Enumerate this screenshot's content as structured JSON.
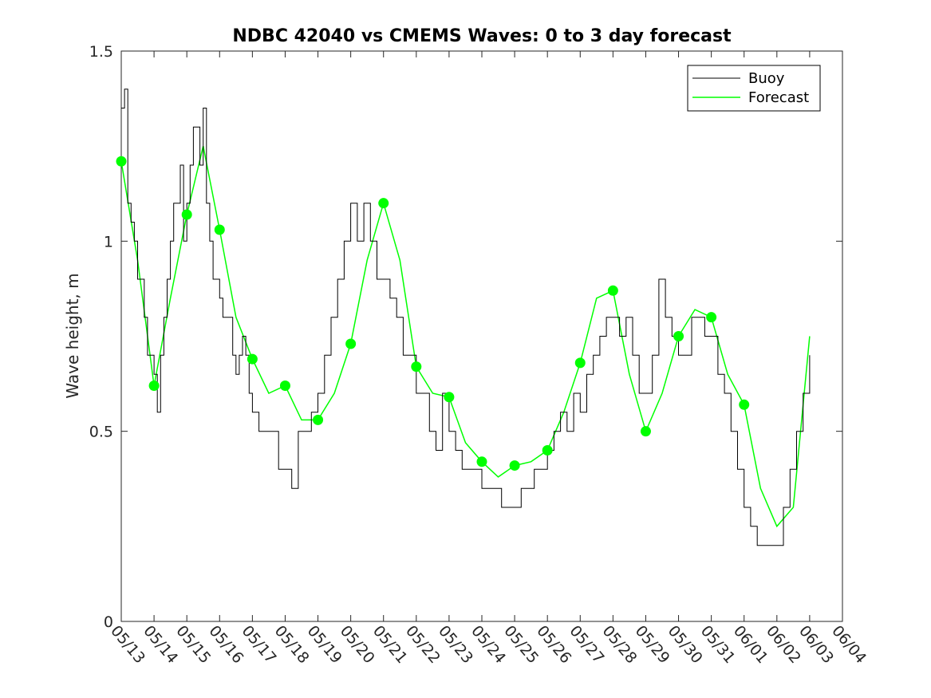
{
  "chart_data": {
    "type": "line",
    "title": "NDBC 42040 vs CMEMS Waves: 0 to 3 day forecast",
    "xlabel": "",
    "ylabel": "Wave height, m",
    "ylim": [
      0,
      1.5
    ],
    "xlim": [
      "05/13",
      "06/04"
    ],
    "yticks": [
      "0",
      "0.5",
      "1",
      "1.5"
    ],
    "xticks": [
      "05/13",
      "05/14",
      "05/15",
      "05/16",
      "05/17",
      "05/18",
      "05/19",
      "05/20",
      "05/21",
      "05/22",
      "05/23",
      "05/24",
      "05/25",
      "05/26",
      "05/27",
      "05/28",
      "05/29",
      "05/30",
      "05/31",
      "06/01",
      "06/02",
      "06/03",
      "06/04"
    ],
    "grid": false,
    "legend": {
      "location": "top-right",
      "entries": [
        "Buoy",
        "Forecast"
      ]
    },
    "colors": {
      "buoy": "#000000",
      "forecast": "#00ff00"
    },
    "series": [
      {
        "name": "Buoy",
        "x": [
          0,
          0.1,
          0.2,
          0.3,
          0.4,
          0.5,
          0.6,
          0.7,
          0.8,
          0.9,
          1.0,
          1.1,
          1.2,
          1.3,
          1.4,
          1.5,
          1.6,
          1.7,
          1.8,
          1.9,
          2.0,
          2.1,
          2.2,
          2.3,
          2.4,
          2.5,
          2.6,
          2.7,
          2.8,
          2.9,
          3.0,
          3.1,
          3.2,
          3.3,
          3.4,
          3.5,
          3.6,
          3.7,
          3.8,
          3.9,
          4.0,
          4.2,
          4.4,
          4.6,
          4.8,
          5.0,
          5.2,
          5.4,
          5.6,
          5.8,
          6.0,
          6.2,
          6.4,
          6.6,
          6.8,
          7.0,
          7.2,
          7.4,
          7.6,
          7.8,
          8.0,
          8.2,
          8.4,
          8.6,
          8.8,
          9.0,
          9.2,
          9.4,
          9.6,
          9.8,
          10.0,
          10.2,
          10.4,
          10.6,
          10.8,
          11.0,
          11.2,
          11.4,
          11.6,
          11.8,
          12.0,
          12.2,
          12.4,
          12.6,
          12.8,
          13.0,
          13.2,
          13.4,
          13.6,
          13.8,
          14.0,
          14.2,
          14.4,
          14.6,
          14.8,
          15.0,
          15.2,
          15.4,
          15.6,
          15.8,
          16.0,
          16.2,
          16.4,
          16.6,
          16.8,
          17.0,
          17.2,
          17.4,
          17.6,
          17.8,
          18.0,
          18.2,
          18.4,
          18.6,
          18.8,
          19.0,
          19.2,
          19.4,
          19.6,
          19.8,
          20.0,
          20.2,
          20.4,
          20.6,
          20.8,
          21.0
        ],
        "values": [
          1.35,
          1.4,
          1.1,
          1.05,
          1.0,
          0.9,
          0.9,
          0.8,
          0.7,
          0.7,
          0.65,
          0.55,
          0.7,
          0.8,
          0.9,
          1.0,
          1.1,
          1.1,
          1.2,
          1.0,
          1.1,
          1.2,
          1.3,
          1.3,
          1.2,
          1.35,
          1.1,
          1.0,
          0.9,
          0.9,
          0.85,
          0.8,
          0.8,
          0.8,
          0.7,
          0.65,
          0.7,
          0.75,
          0.7,
          0.6,
          0.55,
          0.5,
          0.5,
          0.5,
          0.4,
          0.4,
          0.35,
          0.5,
          0.5,
          0.55,
          0.6,
          0.7,
          0.8,
          0.9,
          1.0,
          1.1,
          1.0,
          1.1,
          1.0,
          0.9,
          0.9,
          0.85,
          0.8,
          0.7,
          0.7,
          0.6,
          0.6,
          0.5,
          0.45,
          0.6,
          0.5,
          0.45,
          0.4,
          0.4,
          0.4,
          0.35,
          0.35,
          0.35,
          0.3,
          0.3,
          0.3,
          0.35,
          0.35,
          0.4,
          0.4,
          0.45,
          0.5,
          0.55,
          0.5,
          0.6,
          0.55,
          0.65,
          0.7,
          0.75,
          0.8,
          0.8,
          0.75,
          0.8,
          0.7,
          0.6,
          0.6,
          0.7,
          0.9,
          0.8,
          0.75,
          0.7,
          0.7,
          0.8,
          0.8,
          0.75,
          0.75,
          0.65,
          0.6,
          0.5,
          0.4,
          0.3,
          0.25,
          0.2,
          0.2,
          0.2,
          0.2,
          0.3,
          0.4,
          0.5,
          0.6,
          0.7
        ]
      },
      {
        "name": "Forecast",
        "x": [
          0,
          0.5,
          1,
          1.5,
          2,
          2.5,
          3,
          3.5,
          4,
          4.5,
          5,
          5.5,
          6,
          6.5,
          7,
          7.5,
          8,
          8.5,
          9,
          9.5,
          10,
          10.5,
          11,
          11.5,
          12,
          12.5,
          13,
          13.5,
          14,
          14.5,
          15,
          15.5,
          16,
          16.5,
          17,
          17.5,
          18,
          18.5,
          19,
          19.5,
          20,
          20.5,
          21
        ],
        "values": [
          1.21,
          0.95,
          0.62,
          0.85,
          1.07,
          1.25,
          1.03,
          0.8,
          0.69,
          0.6,
          0.62,
          0.53,
          0.53,
          0.6,
          0.73,
          0.95,
          1.1,
          0.95,
          0.67,
          0.6,
          0.59,
          0.47,
          0.42,
          0.38,
          0.41,
          0.42,
          0.45,
          0.55,
          0.68,
          0.85,
          0.87,
          0.65,
          0.5,
          0.6,
          0.75,
          0.82,
          0.8,
          0.65,
          0.57,
          0.35,
          0.25,
          0.3,
          0.75
        ]
      }
    ],
    "markers": {
      "name": "Forecast",
      "x": [
        0,
        1,
        2,
        3,
        4,
        5,
        6,
        7,
        8,
        9,
        10,
        11,
        12,
        13,
        14,
        15,
        16,
        17,
        18,
        19
      ],
      "values": [
        1.21,
        0.62,
        1.07,
        1.03,
        0.69,
        0.62,
        0.53,
        0.73,
        1.1,
        0.67,
        0.59,
        0.42,
        0.41,
        0.45,
        0.68,
        0.87,
        0.5,
        0.75,
        0.8,
        0.57
      ]
    }
  }
}
